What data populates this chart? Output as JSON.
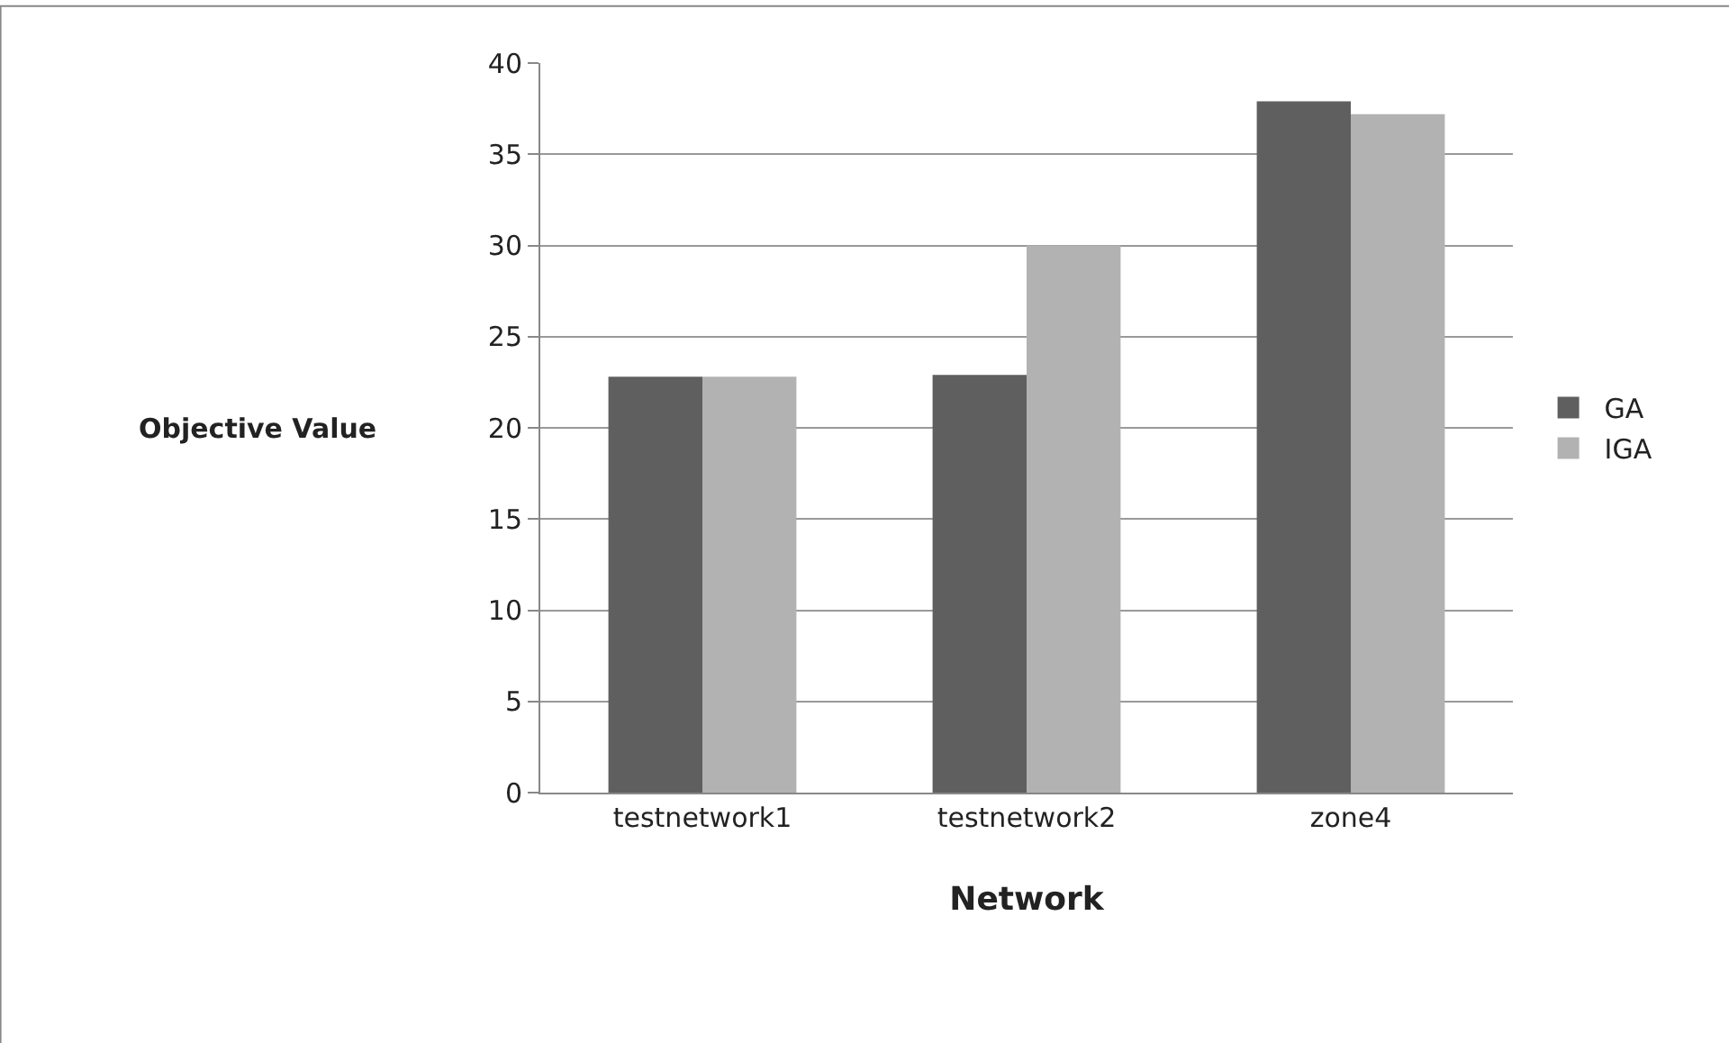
{
  "chart_data": {
    "type": "bar",
    "xlabel": "Network",
    "ylabel": "Objective Value",
    "categories": [
      "testnetwork1",
      "testnetwork2",
      "zone4"
    ],
    "series": [
      {
        "name": "GA",
        "color": "#5f5f5f",
        "values": [
          22.8,
          22.9,
          37.9
        ]
      },
      {
        "name": "IGA",
        "color": "#b2b2b2",
        "values": [
          22.8,
          30.0,
          37.2
        ]
      }
    ],
    "ylim": [
      0,
      40
    ],
    "yticks": [
      0,
      5,
      10,
      15,
      20,
      25,
      30,
      35,
      40
    ],
    "grid": "y",
    "legend": "right"
  }
}
